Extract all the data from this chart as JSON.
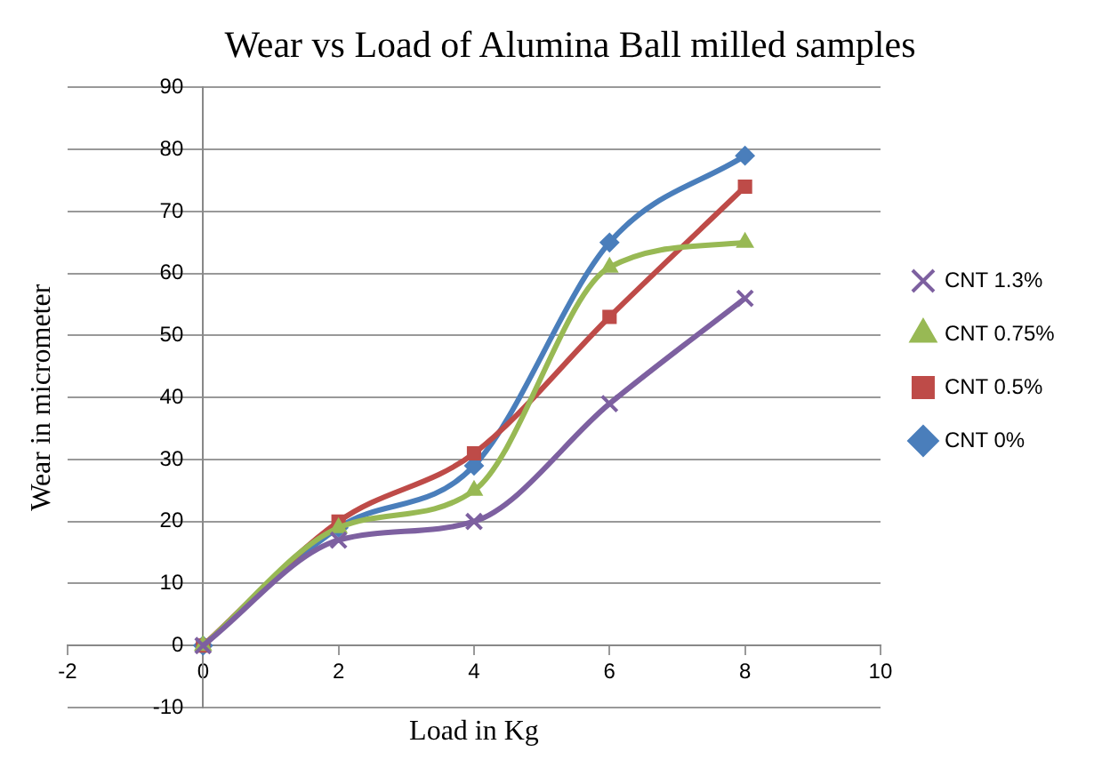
{
  "chart_data": {
    "type": "line",
    "title": "Wear vs Load of Alumina Ball milled samples",
    "xlabel": "Load in Kg",
    "ylabel": "Wear in micrometer",
    "x": [
      0,
      2,
      4,
      6,
      8
    ],
    "series": [
      {
        "name": "CNT 0%",
        "color": "#4a7ebb",
        "marker": "diamond",
        "values": [
          0,
          19,
          29,
          65,
          79
        ]
      },
      {
        "name": "CNT 0.5%",
        "color": "#be4b48",
        "marker": "square",
        "values": [
          0,
          20,
          31,
          53,
          74
        ]
      },
      {
        "name": "CNT 0.75%",
        "color": "#98b954",
        "marker": "triangle",
        "values": [
          0,
          19,
          25,
          61,
          65
        ]
      },
      {
        "name": "CNT 1.3%",
        "color": "#7d60a0",
        "marker": "cross",
        "values": [
          0,
          17,
          20,
          39,
          56
        ]
      }
    ],
    "xlim": [
      -2,
      10
    ],
    "xticks": [
      -2,
      0,
      2,
      4,
      6,
      8,
      10
    ],
    "ylim": [
      -10,
      90
    ],
    "yticks": [
      -10,
      0,
      10,
      20,
      30,
      40,
      50,
      60,
      70,
      80,
      90
    ],
    "grid": "y",
    "legend": "right"
  }
}
